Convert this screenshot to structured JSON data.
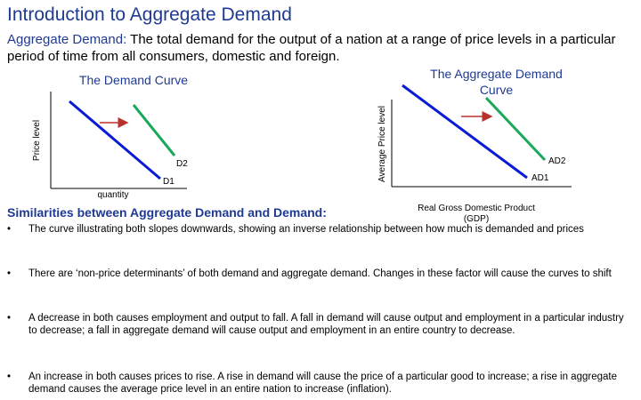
{
  "slide": {
    "title": "Introduction to Aggregate Demand",
    "definition_term": "Aggregate Demand:",
    "definition_text": " The total demand for the output of a nation at a range of price levels in a particular period of time from all consumers, domestic and foreign."
  },
  "demand_curve": {
    "title": "The Demand Curve",
    "y_label": "Price level",
    "x_label": "quantity",
    "curve1_label": "D1",
    "curve2_label": "D2"
  },
  "aggregate_demand_curve": {
    "title": "The Aggregate Demand Curve",
    "y_label": "Average Price level",
    "x_label": "Real Gross Domestic Product (GDP)",
    "curve1_label": "AD1",
    "curve2_label": "AD2"
  },
  "colors": {
    "heading": "#1f3a93",
    "curve1": "#0a1bd6",
    "curve2": "#1aa85a",
    "arrow": "#b8322c"
  },
  "similarities": {
    "heading": "Similarities between Aggregate Demand and Demand:",
    "bullet_symbol": "•",
    "items": [
      "The curve illustrating both slopes downwards, showing an inverse relationship between how much is demanded and prices",
      "There are ‘non-price determinants’ of both demand and aggregate demand. Changes in these factor will cause the curves to shift",
      "A decrease in both causes employment and output to fall. A fall in demand will cause output and employment in a particular industry to decrease; a fall in aggregate demand will cause output and employment in an entire country to decrease.",
      "An increase in both causes prices to rise. A rise in demand will cause the price of a particular good to increase; a rise in aggregate  demand causes the average price level in an entire nation to increase (inflation)."
    ]
  }
}
